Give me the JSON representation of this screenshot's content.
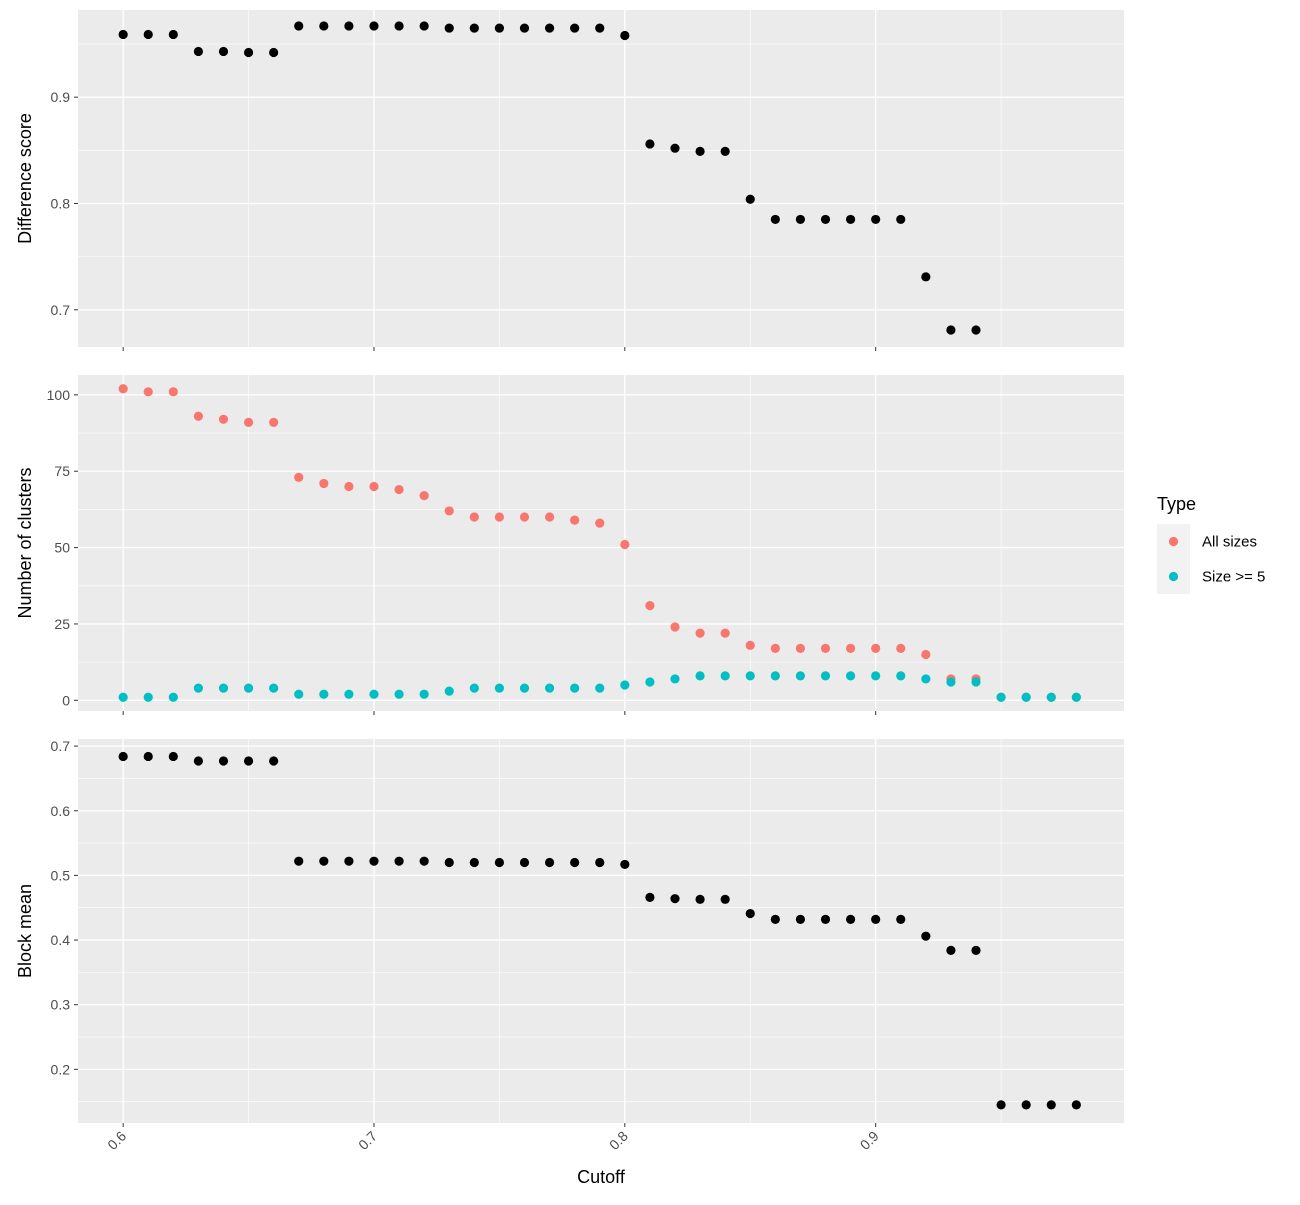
{
  "chart_data": {
    "type": "scatter",
    "xlabel": "Cutoff",
    "xlim": [
      0.582,
      0.999
    ],
    "xticks": [
      {
        "value": 0.6,
        "label": "0.6"
      },
      {
        "value": 0.7,
        "label": "0.7"
      },
      {
        "value": 0.8,
        "label": "0.8"
      },
      {
        "value": 0.9,
        "label": "0.9"
      }
    ],
    "grid": true,
    "legend": {
      "title": "Type",
      "placement": "right",
      "entries": [
        {
          "label": "All sizes",
          "color": "#F8766D"
        },
        {
          "label": "Size >= 5",
          "color": "#00BFC4"
        }
      ]
    },
    "panels": [
      {
        "ylabel": "Difference score",
        "ylim": [
          0.665,
          0.982
        ],
        "yticks": [
          {
            "value": 0.7,
            "label": "0.7"
          },
          {
            "value": 0.8,
            "label": "0.8"
          },
          {
            "value": 0.9,
            "label": "0.9"
          }
        ],
        "series": [
          {
            "color": "#000000",
            "x": [
              0.6,
              0.61,
              0.62,
              0.63,
              0.64,
              0.65,
              0.66,
              0.67,
              0.68,
              0.69,
              0.7,
              0.71,
              0.72,
              0.73,
              0.74,
              0.75,
              0.76,
              0.77,
              0.78,
              0.79,
              0.8,
              0.81,
              0.82,
              0.83,
              0.84,
              0.85,
              0.86,
              0.87,
              0.88,
              0.89,
              0.9,
              0.91,
              0.92,
              0.93,
              0.94
            ],
            "y": [
              0.959,
              0.959,
              0.959,
              0.943,
              0.943,
              0.942,
              0.942,
              0.967,
              0.967,
              0.967,
              0.967,
              0.967,
              0.967,
              0.965,
              0.965,
              0.965,
              0.965,
              0.965,
              0.965,
              0.965,
              0.958,
              0.856,
              0.852,
              0.849,
              0.849,
              0.804,
              0.785,
              0.785,
              0.785,
              0.785,
              0.785,
              0.785,
              0.731,
              0.681,
              0.681
            ]
          }
        ]
      },
      {
        "ylabel": "Number of clusters",
        "ylim": [
          -3.5,
          106.5
        ],
        "yticks": [
          {
            "value": 0,
            "label": "0"
          },
          {
            "value": 25,
            "label": "25"
          },
          {
            "value": 50,
            "label": "50"
          },
          {
            "value": 75,
            "label": "75"
          },
          {
            "value": 100,
            "label": "100"
          }
        ],
        "series": [
          {
            "name": "All sizes",
            "color": "#F8766D",
            "x": [
              0.6,
              0.61,
              0.62,
              0.63,
              0.64,
              0.65,
              0.66,
              0.67,
              0.68,
              0.69,
              0.7,
              0.71,
              0.72,
              0.73,
              0.74,
              0.75,
              0.76,
              0.77,
              0.78,
              0.79,
              0.8,
              0.81,
              0.82,
              0.83,
              0.84,
              0.85,
              0.86,
              0.87,
              0.88,
              0.89,
              0.9,
              0.91,
              0.92,
              0.93,
              0.94,
              0.95,
              0.96,
              0.97,
              0.98
            ],
            "y": [
              102,
              101,
              101,
              93,
              92,
              91,
              91,
              73,
              71,
              70,
              70,
              69,
              67,
              62,
              60,
              60,
              60,
              60,
              59,
              58,
              51,
              31,
              24,
              22,
              22,
              18,
              17,
              17,
              17,
              17,
              17,
              17,
              15,
              7,
              7,
              1,
              1,
              1,
              1
            ]
          },
          {
            "name": "Size >= 5",
            "color": "#00BFC4",
            "x": [
              0.6,
              0.61,
              0.62,
              0.63,
              0.64,
              0.65,
              0.66,
              0.67,
              0.68,
              0.69,
              0.7,
              0.71,
              0.72,
              0.73,
              0.74,
              0.75,
              0.76,
              0.77,
              0.78,
              0.79,
              0.8,
              0.81,
              0.82,
              0.83,
              0.84,
              0.85,
              0.86,
              0.87,
              0.88,
              0.89,
              0.9,
              0.91,
              0.92,
              0.93,
              0.94,
              0.95,
              0.96,
              0.97,
              0.98
            ],
            "y": [
              1,
              1,
              1,
              4,
              4,
              4,
              4,
              2,
              2,
              2,
              2,
              2,
              2,
              3,
              4,
              4,
              4,
              4,
              4,
              4,
              5,
              6,
              7,
              8,
              8,
              8,
              8,
              8,
              8,
              8,
              8,
              8,
              7,
              6,
              6,
              1,
              1,
              1,
              1
            ]
          }
        ]
      },
      {
        "ylabel": "Block mean",
        "ylim": [
          0.117,
          0.711
        ],
        "yticks": [
          {
            "value": 0.2,
            "label": "0.2"
          },
          {
            "value": 0.3,
            "label": "0.3"
          },
          {
            "value": 0.4,
            "label": "0.4"
          },
          {
            "value": 0.5,
            "label": "0.5"
          },
          {
            "value": 0.6,
            "label": "0.6"
          },
          {
            "value": 0.7,
            "label": "0.7"
          }
        ],
        "series": [
          {
            "color": "#000000",
            "x": [
              0.6,
              0.61,
              0.62,
              0.63,
              0.64,
              0.65,
              0.66,
              0.67,
              0.68,
              0.69,
              0.7,
              0.71,
              0.72,
              0.73,
              0.74,
              0.75,
              0.76,
              0.77,
              0.78,
              0.79,
              0.8,
              0.81,
              0.82,
              0.83,
              0.84,
              0.85,
              0.86,
              0.87,
              0.88,
              0.89,
              0.9,
              0.91,
              0.92,
              0.93,
              0.94,
              0.95,
              0.96,
              0.97,
              0.98
            ],
            "y": [
              0.684,
              0.684,
              0.684,
              0.677,
              0.677,
              0.677,
              0.677,
              0.522,
              0.522,
              0.522,
              0.522,
              0.522,
              0.522,
              0.52,
              0.52,
              0.52,
              0.52,
              0.52,
              0.52,
              0.52,
              0.517,
              0.466,
              0.464,
              0.463,
              0.463,
              0.441,
              0.432,
              0.432,
              0.432,
              0.432,
              0.432,
              0.432,
              0.406,
              0.384,
              0.384,
              0.145,
              0.145,
              0.145,
              0.145
            ]
          }
        ]
      }
    ]
  }
}
